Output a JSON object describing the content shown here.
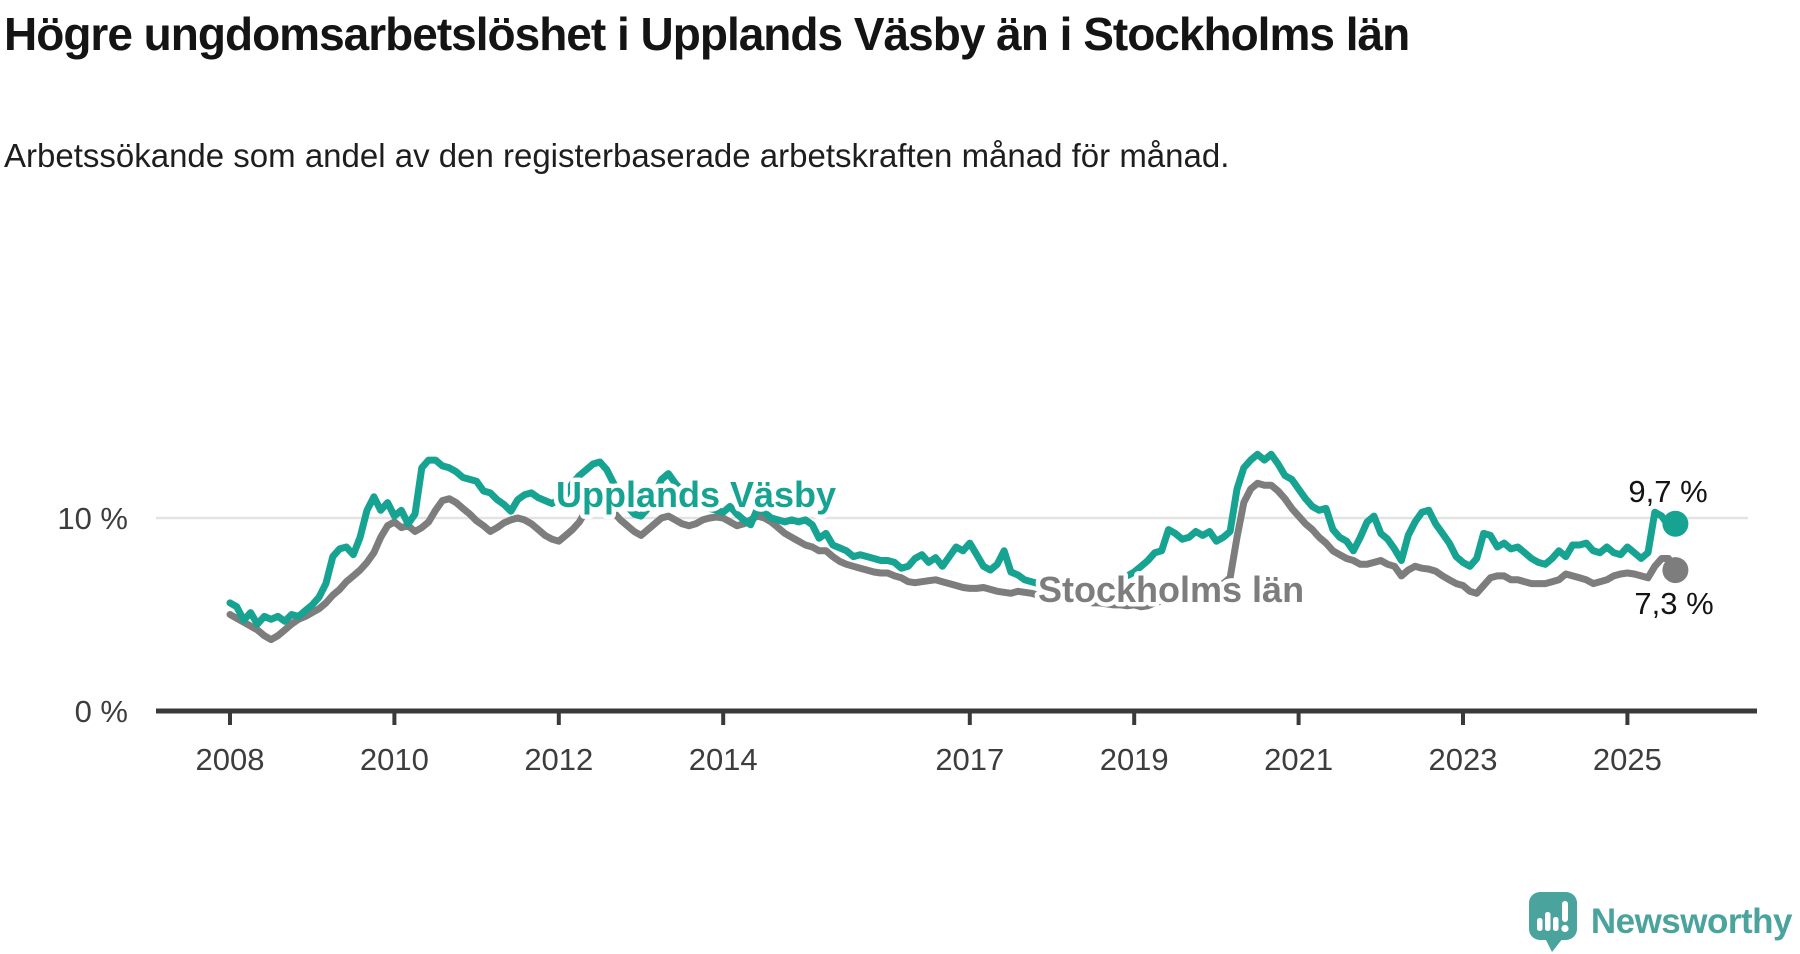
{
  "header": {
    "title": "Högre ungdomsarbetslöshet i Upplands Väsby än i Stockholms län",
    "subtitle": "Arbetssökande som andel av den registerbaserade arbetskraften månad för månad."
  },
  "colors": {
    "accent_teal": "#17a392",
    "series_gray": "#7d7d7d",
    "gridline": "#e3e3e3",
    "axis_text": "#3d3d3d",
    "title_text": "#141414",
    "logo_teal": "#4aa49d"
  },
  "footer": {
    "brand": "Newsworthy",
    "logo_icon": "speech-bubble-bar-chart-exclamation"
  },
  "chart_data": {
    "type": "line",
    "title": "Högre ungdomsarbetslöshet i Upplands Väsby än i Stockholms län",
    "subtitle": "Arbetssökande som andel av den registerbaserade arbetskraften månad för månad.",
    "unit": "%",
    "frequency": "monthly",
    "x_start": "2008-01",
    "x_end": "2025-08",
    "ylim": [
      0,
      13.8
    ],
    "grid": "horizontal-10-only",
    "gridline_value": 10,
    "legend_position": "inline-labels-on-lines",
    "y_ticks": [
      {
        "label": "0 %",
        "value": 0
      },
      {
        "label": "10 %",
        "value": 10
      }
    ],
    "x_ticks": [
      {
        "label": "2008",
        "year": 2008
      },
      {
        "label": "2010",
        "year": 2010
      },
      {
        "label": "2012",
        "year": 2012
      },
      {
        "label": "2014",
        "year": 2014
      },
      {
        "label": "2017",
        "year": 2017
      },
      {
        "label": "2019",
        "year": 2019
      },
      {
        "label": "2021",
        "year": 2021
      },
      {
        "label": "2023",
        "year": 2023
      },
      {
        "label": "2025",
        "year": 2025
      }
    ],
    "series": [
      {
        "name": "Upplands Väsby",
        "color": "#17a392",
        "end_label": "9,7 %",
        "end_value": 9.7,
        "values": [
          5.6,
          5.4,
          4.7,
          5.1,
          4.5,
          4.9,
          4.75,
          4.9,
          4.65,
          5.0,
          4.9,
          5.2,
          5.5,
          5.9,
          6.6,
          8.0,
          8.4,
          8.5,
          8.1,
          9.0,
          10.4,
          11.1,
          10.4,
          10.8,
          10.1,
          10.4,
          9.7,
          10.2,
          12.6,
          13.0,
          13.0,
          12.7,
          12.6,
          12.4,
          12.1,
          12.0,
          11.9,
          11.4,
          11.3,
          10.95,
          10.7,
          10.35,
          10.95,
          11.2,
          11.3,
          11.05,
          10.9,
          10.75,
          10.95,
          11.2,
          11.8,
          12.2,
          12.5,
          12.8,
          12.9,
          12.5,
          11.8,
          11.2,
          10.6,
          10.2,
          10.1,
          10.5,
          11.2,
          12.0,
          12.3,
          11.8,
          11.4,
          11.0,
          10.8,
          10.6,
          10.5,
          10.4,
          10.3,
          10.6,
          10.2,
          9.9,
          9.65,
          10.5,
          10.3,
          10.0,
          9.9,
          9.8,
          9.9,
          9.8,
          9.9,
          9.65,
          8.95,
          9.2,
          8.6,
          8.45,
          8.3,
          8.0,
          8.1,
          8.0,
          7.9,
          7.8,
          7.8,
          7.7,
          7.4,
          7.5,
          7.9,
          8.1,
          7.7,
          7.95,
          7.5,
          8.0,
          8.5,
          8.3,
          8.7,
          8.1,
          7.5,
          7.3,
          7.6,
          8.3,
          7.2,
          7.05,
          6.8,
          6.7,
          6.6,
          6.5,
          6.3,
          6.0,
          5.8,
          5.7,
          5.7,
          5.8,
          6.0,
          6.2,
          6.4,
          6.6,
          6.8,
          7.0,
          7.2,
          7.5,
          7.8,
          8.2,
          8.3,
          9.4,
          9.2,
          8.9,
          9.0,
          9.3,
          9.1,
          9.3,
          8.8,
          9.0,
          9.3,
          11.5,
          12.6,
          13.0,
          13.3,
          13.0,
          13.3,
          12.8,
          12.2,
          12.0,
          11.5,
          11.0,
          10.6,
          10.4,
          10.5,
          9.4,
          9.0,
          8.8,
          8.3,
          9.0,
          9.8,
          10.1,
          9.2,
          8.9,
          8.4,
          7.8,
          9.1,
          9.8,
          10.3,
          10.4,
          9.7,
          9.2,
          8.7,
          8.0,
          7.7,
          7.5,
          7.9,
          9.2,
          9.1,
          8.5,
          8.7,
          8.4,
          8.5,
          8.2,
          7.9,
          7.7,
          7.6,
          7.9,
          8.3,
          8.0,
          8.6,
          8.6,
          8.7,
          8.3,
          8.2,
          8.5,
          8.2,
          8.1,
          8.5,
          8.2,
          7.9,
          8.2,
          10.3,
          10.1,
          9.6,
          9.7
        ]
      },
      {
        "name": "Stockholms län",
        "color": "#7d7d7d",
        "end_label": "7,3 %",
        "end_value": 7.3,
        "values": [
          5.0,
          4.8,
          4.6,
          4.4,
          4.2,
          3.9,
          3.7,
          3.9,
          4.2,
          4.5,
          4.75,
          4.9,
          5.1,
          5.3,
          5.6,
          6.0,
          6.3,
          6.7,
          7.0,
          7.3,
          7.7,
          8.2,
          9.0,
          9.6,
          9.8,
          9.5,
          9.6,
          9.3,
          9.5,
          9.8,
          10.4,
          10.9,
          11.0,
          10.8,
          10.5,
          10.2,
          9.85,
          9.6,
          9.3,
          9.5,
          9.75,
          9.9,
          10.0,
          9.9,
          9.7,
          9.4,
          9.1,
          8.9,
          8.8,
          9.1,
          9.4,
          9.8,
          10.4,
          10.9,
          10.8,
          10.6,
          10.3,
          9.9,
          9.6,
          9.3,
          9.1,
          9.4,
          9.7,
          10.0,
          10.1,
          9.9,
          9.7,
          9.6,
          9.7,
          9.9,
          10.0,
          10.05,
          10.0,
          9.8,
          9.6,
          9.7,
          9.9,
          10.1,
          10.0,
          9.8,
          9.5,
          9.2,
          9.0,
          8.8,
          8.6,
          8.5,
          8.3,
          8.3,
          8.0,
          7.75,
          7.6,
          7.5,
          7.4,
          7.3,
          7.2,
          7.15,
          7.15,
          7.0,
          6.9,
          6.7,
          6.65,
          6.7,
          6.75,
          6.8,
          6.7,
          6.6,
          6.5,
          6.4,
          6.35,
          6.35,
          6.4,
          6.3,
          6.2,
          6.15,
          6.1,
          6.2,
          6.15,
          6.1,
          6.0,
          5.95,
          5.9,
          5.85,
          5.8,
          5.75,
          5.7,
          5.65,
          5.6,
          5.6,
          5.55,
          5.5,
          5.5,
          5.45,
          5.5,
          5.4,
          5.45,
          5.6,
          5.7,
          5.8,
          6.0,
          6.1,
          6.2,
          6.3,
          6.35,
          6.4,
          6.5,
          6.6,
          6.9,
          9.0,
          10.8,
          11.5,
          11.8,
          11.7,
          11.7,
          11.4,
          11.0,
          10.5,
          10.1,
          9.7,
          9.4,
          9.0,
          8.7,
          8.3,
          8.1,
          7.9,
          7.8,
          7.6,
          7.6,
          7.7,
          7.8,
          7.6,
          7.5,
          7.0,
          7.3,
          7.5,
          7.4,
          7.35,
          7.25,
          7.0,
          6.8,
          6.6,
          6.5,
          6.2,
          6.1,
          6.5,
          6.9,
          7.0,
          7.0,
          6.8,
          6.8,
          6.7,
          6.6,
          6.6,
          6.6,
          6.7,
          6.8,
          7.1,
          7.0,
          6.9,
          6.8,
          6.6,
          6.7,
          6.8,
          7.0,
          7.1,
          7.15,
          7.1,
          7.0,
          6.9,
          7.5,
          7.9,
          7.9,
          7.3
        ]
      }
    ]
  }
}
